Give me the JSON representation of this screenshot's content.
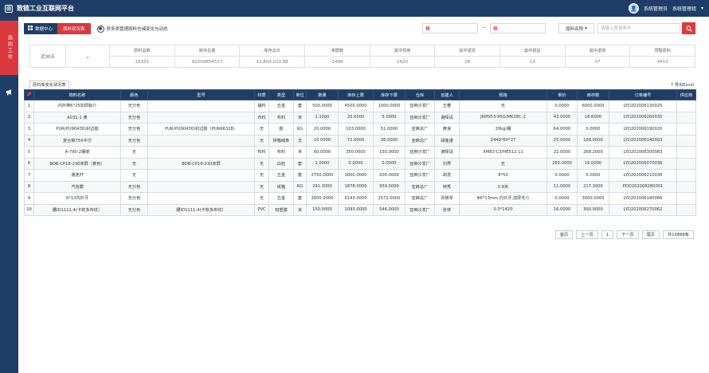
{
  "app": {
    "title": "致链工业互联网平台",
    "logo": "田"
  },
  "user": {
    "name": "系统管理员",
    "role": "系统管理组"
  },
  "sidebar": {
    "active_label": "我的工作",
    "megaphone_icon": "megaphone-icon"
  },
  "toolbar": {
    "data_center": "数据中心",
    "report": "原料状况表",
    "hint": "很多类管理原料仓储变化与动态",
    "date_start_placeholder": "",
    "date_end_placeholder": "",
    "date_sep": "—",
    "name_select": "原料名称",
    "search_placeholder": "请输入查询条件"
  },
  "stats": {
    "range": "近30天",
    "columns": [
      {
        "label": "原料总数",
        "value": "16351"
      },
      {
        "label": "库存总量",
        "value": "92209854527"
      },
      {
        "label": "库存总价",
        "value": "12,809,022.88"
      },
      {
        "label": "单据数",
        "value": "1498"
      },
      {
        "label": "其中领用",
        "value": "1420"
      },
      {
        "label": "其中退货",
        "value": "28"
      },
      {
        "label": "其中损益",
        "value": "13"
      },
      {
        "label": "其中退库",
        "value": "37"
      },
      {
        "label": "预警原料",
        "value": "4413"
      }
    ]
  },
  "table": {
    "caption": "原料库变化状况表",
    "export": "导出Excel",
    "headers": [
      "",
      "物料名称",
      "颜色",
      "型号",
      "材质",
      "类型",
      "单位",
      "数量",
      "库存上限",
      "库存下限",
      "仓库",
      "创建人",
      "规格",
      "单价",
      "库存数",
      "订单编号",
      "供应商"
    ],
    "rows": [
      [
        "1",
        "内外带6°25加厚胎介",
        "无分色",
        "",
        "辅料",
        "五金",
        "套",
        "500.0000",
        "4500.0000",
        "1000.0000",
        "亚麻沙发厂",
        "王春",
        "无",
        "0.0000",
        "6000.0000",
        "LYD202006130025",
        ""
      ],
      [
        "2",
        "A031-1 黄",
        "无分色",
        "",
        "布料",
        "布料",
        "米",
        "1.1000",
        "20.0000",
        "5.0000",
        "亚麻沙发厂",
        "谢晖请",
        "JKM953-45G/MK28C-2",
        "43.0000",
        "18.6000",
        "LYD202006260035",
        ""
      ],
      [
        "3",
        "PUR(PU90430)封边胶",
        "无分色",
        "PUR(PU90430)封边胶（PUR66328）",
        "无",
        "胶",
        "KG",
        "20.0000",
        "103.0000",
        "51.0000",
        "亚麻总厂",
        "黄良",
        "20kg/桶",
        "64.0000",
        "0.0000",
        "LYD202006190020",
        ""
      ],
      [
        "4",
        "复合棉75X中方",
        "无分色",
        "",
        "无",
        "拼箱绒条",
        "支",
        "10.0000",
        "72.0000",
        "36.0000",
        "亚麻总厂",
        "胡莲谨",
        "2440*60*27",
        "25.0000",
        "108.0000",
        "LYD202006140003",
        ""
      ],
      [
        "5",
        "A-790-2摆架",
        "无",
        "",
        "布料",
        "布料",
        "米",
        "60.0000",
        "350.0000",
        "150.0000",
        "亚麻沙发厂",
        "谢晖请",
        "XM83-C3/HE512-11",
        "22.0000",
        "268.2000",
        "LYD202006300083",
        ""
      ],
      [
        "6",
        "BDB-CP18-230床屏（黄色）",
        "无",
        "BDB-CP18-230床屏",
        "无",
        "白胚",
        "套",
        "1.0000",
        "0.0000",
        "0.0000",
        "亚麻沙发厂",
        "刘界",
        "无",
        "265.0000",
        "16.0000",
        "LYD202006070036",
        ""
      ],
      [
        "7",
        "通连杆",
        "无",
        "",
        "无",
        "五金",
        "套",
        "2750.0000",
        "3000.0000",
        "500.0000",
        "亚麻沙发厂",
        "胡发",
        "8*50",
        "0.0000",
        "0.0000",
        "LYD202006210038",
        ""
      ],
      [
        "8",
        "汽泡膜",
        "无分色",
        "",
        "无",
        "纸箱",
        "KG",
        "291.3000",
        "1878.0000",
        "939.0000",
        "亚麻总厂",
        "钟秀",
        "0.8米",
        "11.0000",
        "217.3000",
        "PDD202006280001",
        ""
      ],
      [
        "9",
        "6*13内外牙",
        "无分色",
        "",
        "无",
        "五金",
        "套",
        "3000.0000",
        "5143.0000",
        "2571.0000",
        "亚麻总厂",
        "孙随琴",
        "Φ6*13mm 内外牙,加厚无介",
        "0.0000",
        "3000.0000",
        "LYD202006180066",
        ""
      ],
      [
        "10",
        "腰ID1111-4(卡软多布纹）",
        "无分色",
        "腰ID1111-4(卡软多布纹）",
        "PVC",
        "吸塑膜",
        "米",
        "150.0000",
        "1093.0000",
        "546.0000",
        "亚麻沙发厂",
        "张林",
        "0.3*1420",
        "16.0000",
        "300.0000",
        "LYD202006270062",
        ""
      ]
    ]
  },
  "pager": {
    "first": "首页",
    "prev": "上一页",
    "current": "1",
    "next": "下一页",
    "last": "尾页",
    "total": "共10888条"
  }
}
